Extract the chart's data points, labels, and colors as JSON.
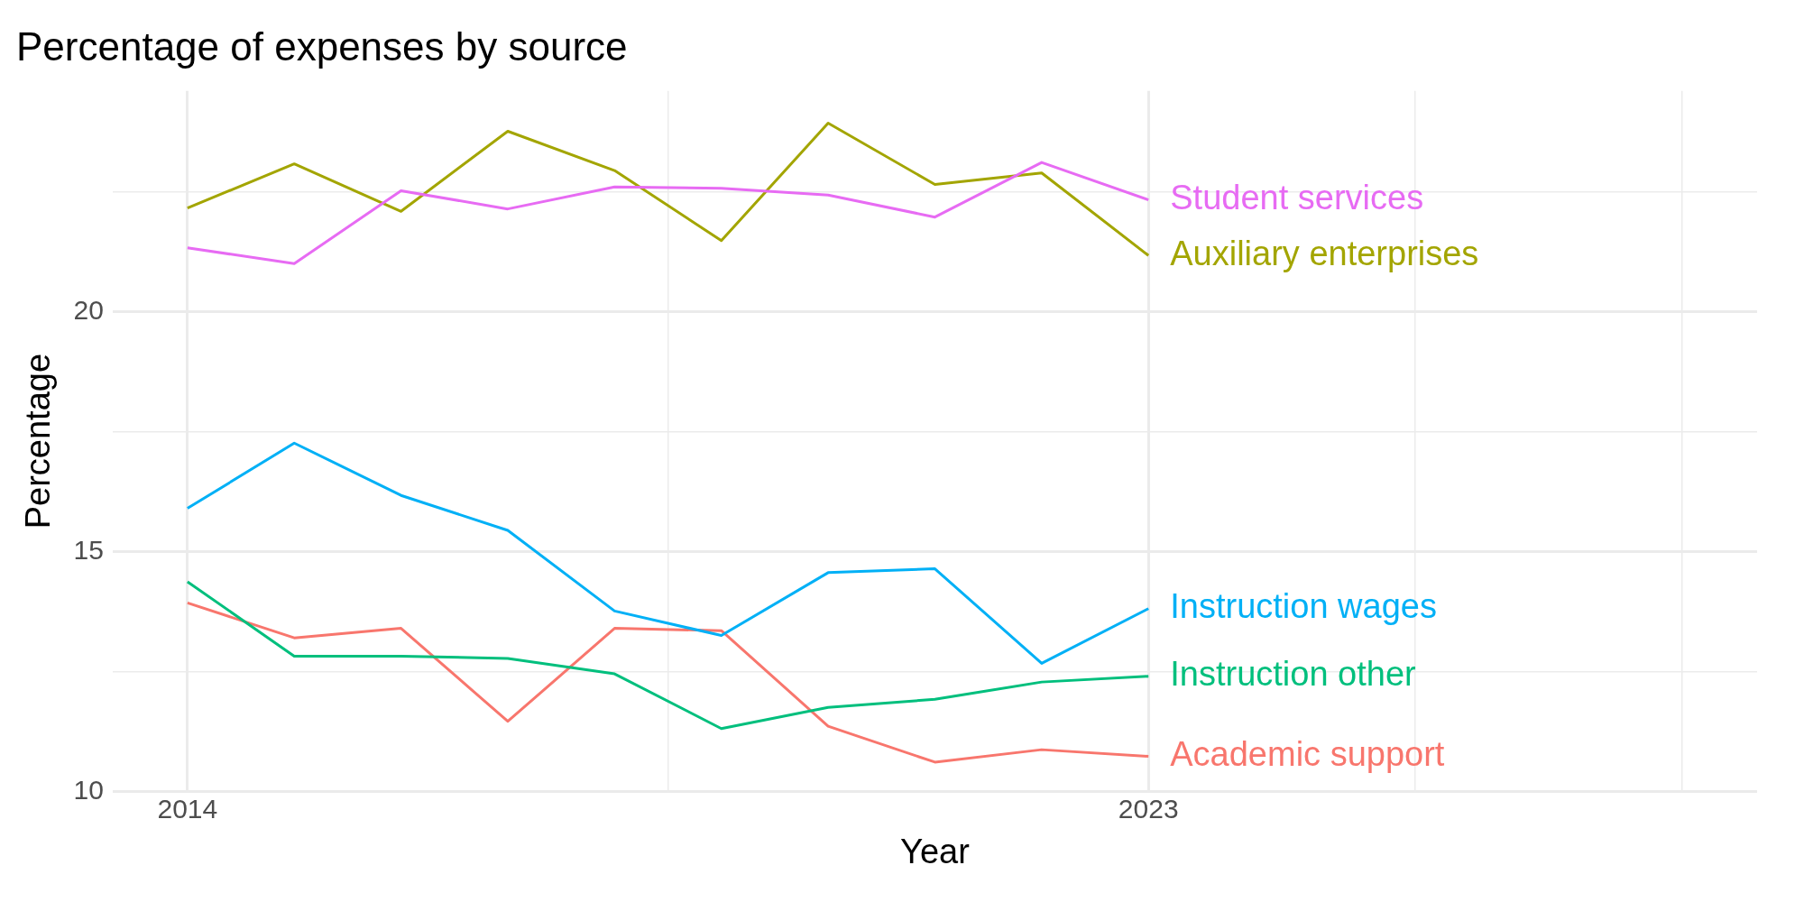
{
  "chart_data": {
    "type": "line",
    "title": "Percentage of expenses by source",
    "xlabel": "Year",
    "ylabel": "Percentage",
    "x": [
      2014,
      2015,
      2016,
      2017,
      2018,
      2019,
      2020,
      2021,
      2022,
      2023
    ],
    "series": [
      {
        "name": "Student services",
        "color": "#e76bf3",
        "values": [
          21.33,
          21.0,
          22.52,
          22.14,
          22.6,
          22.57,
          22.43,
          21.97,
          23.11,
          22.33
        ]
      },
      {
        "name": "Auxiliary enterprises",
        "color": "#a3a500",
        "values": [
          22.16,
          23.08,
          22.09,
          23.76,
          22.94,
          21.48,
          23.93,
          22.65,
          22.89,
          21.17
        ]
      },
      {
        "name": "Instruction wages",
        "color": "#00b0f6",
        "values": [
          15.9,
          17.26,
          16.17,
          15.44,
          13.76,
          13.25,
          14.56,
          14.64,
          12.67,
          13.81
        ]
      },
      {
        "name": "Instruction other",
        "color": "#00bf7d",
        "values": [
          14.37,
          12.82,
          12.82,
          12.77,
          12.45,
          11.31,
          11.75,
          11.92,
          12.28,
          12.4
        ]
      },
      {
        "name": "Academic support",
        "color": "#f8766d",
        "values": [
          13.93,
          13.2,
          13.4,
          11.46,
          13.4,
          13.35,
          11.36,
          10.61,
          10.87,
          10.73
        ]
      }
    ],
    "xlim": [
      2013.3,
      2028.7
    ],
    "ylim": [
      10,
      24.6
    ],
    "xticks": [
      2014,
      {
        "value": 2018.5,
        "label": null
      },
      2023,
      {
        "value": 2025.5,
        "label": null
      },
      {
        "value": 2028,
        "label": null
      }
    ],
    "yticks": [
      10,
      {
        "value": 12.5,
        "label": null
      },
      15,
      {
        "value": 17.5,
        "label": null
      },
      20,
      {
        "value": 22.5,
        "label": null
      }
    ],
    "grid": true,
    "legend": false,
    "marker": "none",
    "line_style": "solid"
  }
}
